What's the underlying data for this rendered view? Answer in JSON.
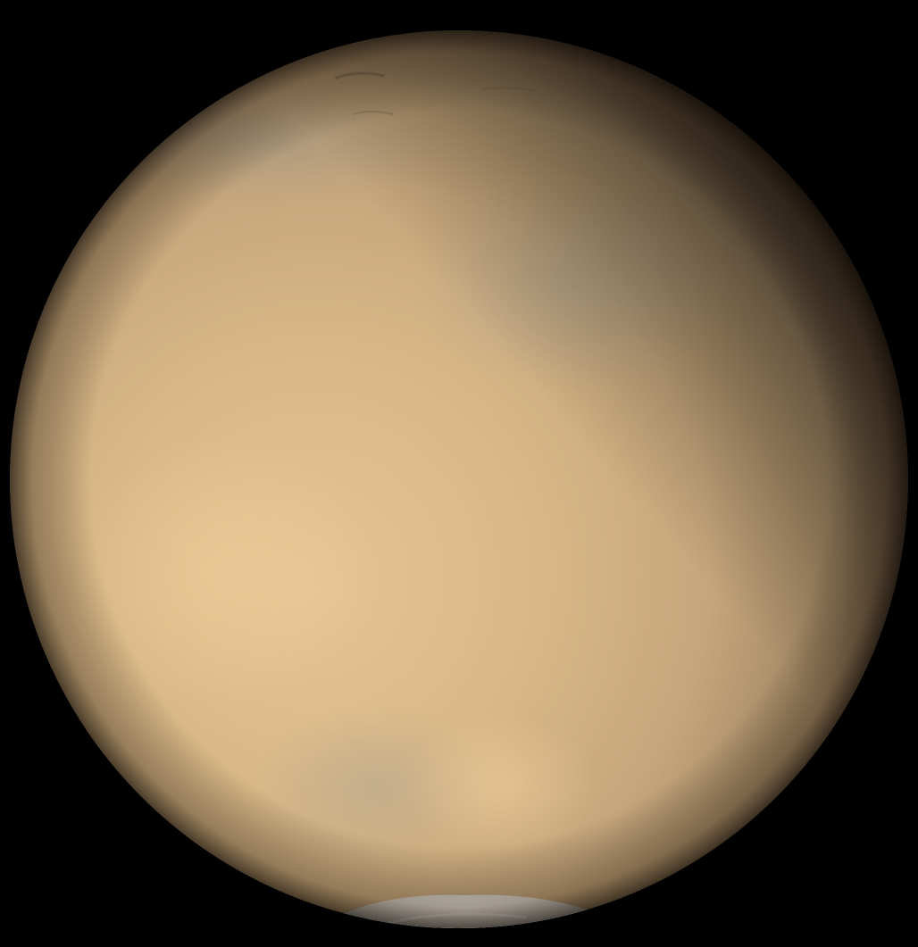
{
  "scene": {
    "subject": "planet-mars-dust-storm",
    "colors": {
      "space": "#000000",
      "surface_light": "#e2c08e",
      "surface_mid": "#c9a97f",
      "surface_dust": "#b79b74",
      "terminator": "#2a1f15",
      "polar_cap": "#e8e6e0",
      "polar_cap_shadow": "#9da3a8",
      "haze_blue": "#8f9296"
    }
  }
}
